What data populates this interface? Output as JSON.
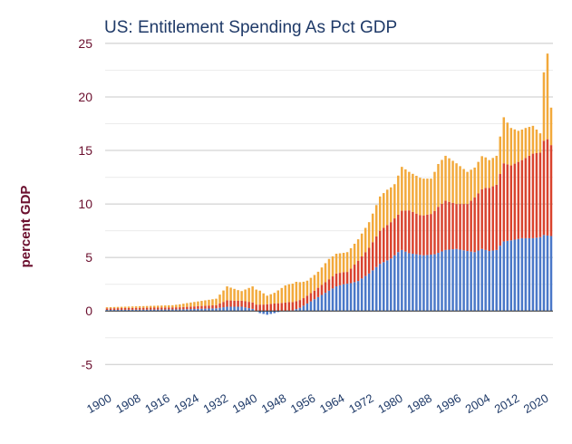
{
  "chart_data": {
    "type": "bar",
    "stacked": true,
    "title": "US: Entitlement Spending As Pct GDP",
    "ylabel": "percent GDP",
    "xlabel": "",
    "ylim": [
      -6.5,
      25.5
    ],
    "yticks": [
      -5,
      0,
      5,
      10,
      15,
      20,
      25
    ],
    "xticks": [
      1900,
      1908,
      1916,
      1924,
      1932,
      1940,
      1948,
      1956,
      1964,
      1972,
      1980,
      1988,
      1996,
      2004,
      2012,
      2020
    ],
    "grid": true,
    "legend": "none",
    "x_start": 1900,
    "x_end": 2022,
    "series_colors": [
      "#4a78c8",
      "#d9432e",
      "#f2a93b"
    ],
    "anchors": {
      "bottom": [
        [
          1900,
          0.1
        ],
        [
          1920,
          0.15
        ],
        [
          1930,
          0.25
        ],
        [
          1933,
          0.4
        ],
        [
          1937,
          0.4
        ],
        [
          1940,
          0.2
        ],
        [
          1942,
          -0.2
        ],
        [
          1944,
          -0.35
        ],
        [
          1946,
          -0.2
        ],
        [
          1948,
          0.0
        ],
        [
          1951,
          0.05
        ],
        [
          1953,
          0.3
        ],
        [
          1955,
          0.7
        ],
        [
          1957,
          1.1
        ],
        [
          1960,
          1.7
        ],
        [
          1963,
          2.3
        ],
        [
          1965,
          2.5
        ],
        [
          1967,
          2.6
        ],
        [
          1969,
          2.8
        ],
        [
          1972,
          3.5
        ],
        [
          1975,
          4.4
        ],
        [
          1978,
          4.9
        ],
        [
          1980,
          5.5
        ],
        [
          1981,
          5.7
        ],
        [
          1983,
          5.4
        ],
        [
          1985,
          5.3
        ],
        [
          1987,
          5.2
        ],
        [
          1990,
          5.3
        ],
        [
          1993,
          5.7
        ],
        [
          1996,
          5.8
        ],
        [
          1999,
          5.6
        ],
        [
          2001,
          5.5
        ],
        [
          2003,
          5.8
        ],
        [
          2005,
          5.6
        ],
        [
          2007,
          5.7
        ],
        [
          2009,
          6.5
        ],
        [
          2011,
          6.6
        ],
        [
          2014,
          6.8
        ],
        [
          2017,
          6.8
        ],
        [
          2019,
          6.9
        ],
        [
          2020,
          7.1
        ],
        [
          2022,
          7.0
        ]
      ],
      "middle": [
        [
          1900,
          0.15
        ],
        [
          1920,
          0.2
        ],
        [
          1930,
          0.3
        ],
        [
          1933,
          0.6
        ],
        [
          1936,
          0.55
        ],
        [
          1940,
          0.6
        ],
        [
          1943,
          0.6
        ],
        [
          1946,
          0.7
        ],
        [
          1950,
          0.8
        ],
        [
          1954,
          0.7
        ],
        [
          1957,
          0.8
        ],
        [
          1960,
          1.0
        ],
        [
          1963,
          1.2
        ],
        [
          1966,
          1.1
        ],
        [
          1969,
          1.9
        ],
        [
          1972,
          2.4
        ],
        [
          1975,
          3.1
        ],
        [
          1978,
          3.4
        ],
        [
          1980,
          3.5
        ],
        [
          1983,
          4.0
        ],
        [
          1986,
          3.7
        ],
        [
          1989,
          3.8
        ],
        [
          1991,
          4.3
        ],
        [
          1993,
          4.6
        ],
        [
          1996,
          4.2
        ],
        [
          1999,
          4.4
        ],
        [
          2001,
          5.1
        ],
        [
          2004,
          5.8
        ],
        [
          2007,
          6.1
        ],
        [
          2009,
          7.3
        ],
        [
          2011,
          7.0
        ],
        [
          2014,
          7.3
        ],
        [
          2017,
          7.9
        ],
        [
          2019,
          7.9
        ],
        [
          2020,
          8.8
        ],
        [
          2021,
          9.0
        ],
        [
          2022,
          8.5
        ]
      ],
      "top": [
        [
          1900,
          0.1
        ],
        [
          1918,
          0.2
        ],
        [
          1922,
          0.35
        ],
        [
          1930,
          0.6
        ],
        [
          1933,
          1.3
        ],
        [
          1935,
          1.1
        ],
        [
          1937,
          0.9
        ],
        [
          1940,
          1.5
        ],
        [
          1942,
          1.3
        ],
        [
          1944,
          0.8
        ],
        [
          1946,
          1.0
        ],
        [
          1949,
          1.6
        ],
        [
          1952,
          1.8
        ],
        [
          1955,
          1.4
        ],
        [
          1958,
          1.5
        ],
        [
          1961,
          1.9
        ],
        [
          1965,
          1.8
        ],
        [
          1969,
          2.0
        ],
        [
          1972,
          2.4
        ],
        [
          1975,
          3.2
        ],
        [
          1977,
          3.3
        ],
        [
          1979,
          3.2
        ],
        [
          1981,
          4.1
        ],
        [
          1983,
          3.6
        ],
        [
          1986,
          3.5
        ],
        [
          1989,
          3.3
        ],
        [
          1991,
          4.0
        ],
        [
          1993,
          4.2
        ],
        [
          1996,
          3.8
        ],
        [
          1999,
          3.0
        ],
        [
          2001,
          2.8
        ],
        [
          2003,
          3.1
        ],
        [
          2005,
          2.6
        ],
        [
          2007,
          2.7
        ],
        [
          2009,
          4.3
        ],
        [
          2011,
          3.5
        ],
        [
          2013,
          2.9
        ],
        [
          2015,
          2.8
        ],
        [
          2017,
          2.6
        ],
        [
          2019,
          1.8
        ],
        [
          2020,
          6.4
        ],
        [
          2021,
          8.0
        ],
        [
          2022,
          3.5
        ]
      ]
    }
  }
}
